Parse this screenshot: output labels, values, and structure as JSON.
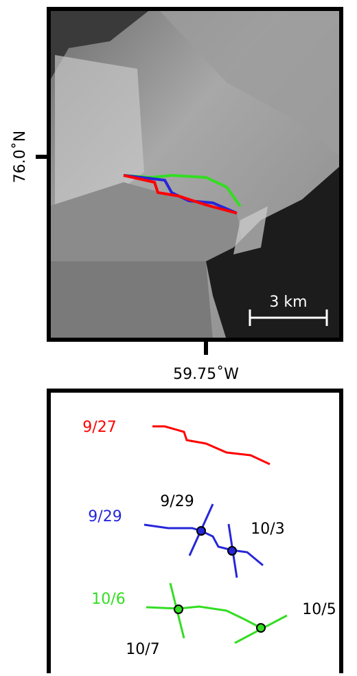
{
  "map": {
    "lat_label": "76.0˚N",
    "lon_label": "59.75˚W",
    "scale_label": "3 km"
  },
  "diagram": {
    "fronts": [
      {
        "label": "9/27",
        "color": "#ff0000"
      },
      {
        "label": "9/29",
        "color": "#2626d9"
      },
      {
        "label": "10/6",
        "color": "#33dd22"
      }
    ],
    "annotations": [
      "9/29",
      "10/3",
      "10/5",
      "10/7"
    ]
  }
}
